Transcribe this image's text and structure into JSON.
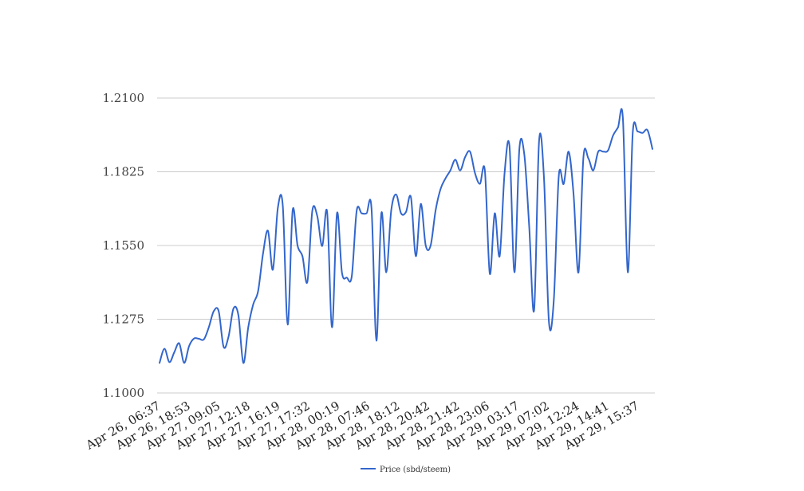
{
  "chart_data": {
    "type": "line",
    "title": "",
    "xlabel": "",
    "ylabel": "",
    "ylim": [
      1.1,
      1.21
    ],
    "y_ticks": [
      "1.1000",
      "1.1275",
      "1.1550",
      "1.1825",
      "1.2100"
    ],
    "x_tick_labels": [
      "Apr 26, 06:37",
      "Apr 26, 18:53",
      "Apr 27, 09:05",
      "Apr 27, 12:18",
      "Apr 27, 16:19",
      "Apr 27, 17:32",
      "Apr 28, 00:19",
      "Apr 28, 07:46",
      "Apr 28, 18:12",
      "Apr 28, 20:42",
      "Apr 28, 21:42",
      "Apr 28, 23:06",
      "Apr 29, 03:17",
      "Apr 29, 07:02",
      "Apr 29, 12:24",
      "Apr 29, 14:41",
      "Apr 29, 15:37"
    ],
    "grid": true,
    "legend_position": "bottom",
    "series": [
      {
        "name": "Price (sbd/steem)",
        "color": "#3366cc",
        "values": [
          1.1112,
          1.1165,
          1.1115,
          1.1152,
          1.1185,
          1.1112,
          1.1175,
          1.1203,
          1.1202,
          1.12,
          1.1245,
          1.1305,
          1.1305,
          1.1172,
          1.121,
          1.1315,
          1.129,
          1.1112,
          1.1245,
          1.133,
          1.138,
          1.152,
          1.1605,
          1.146,
          1.169,
          1.17,
          1.1255,
          1.168,
          1.155,
          1.151,
          1.1415,
          1.168,
          1.166,
          1.1548,
          1.1675,
          1.1245,
          1.167,
          1.145,
          1.143,
          1.1435,
          1.168,
          1.167,
          1.167,
          1.169,
          1.1195,
          1.167,
          1.145,
          1.168,
          1.174,
          1.167,
          1.1675,
          1.173,
          1.151,
          1.1705,
          1.155,
          1.155,
          1.168,
          1.176,
          1.18,
          1.183,
          1.187,
          1.183,
          1.188,
          1.19,
          1.182,
          1.178,
          1.183,
          1.1445,
          1.167,
          1.151,
          1.182,
          1.192,
          1.145,
          1.191,
          1.189,
          1.162,
          1.131,
          1.194,
          1.18,
          1.1265,
          1.135,
          1.181,
          1.178,
          1.19,
          1.174,
          1.145,
          1.188,
          1.1875,
          1.183,
          1.19,
          1.19,
          1.1905,
          1.196,
          1.199,
          1.2025,
          1.145,
          1.197,
          1.1975,
          1.197,
          1.198,
          1.191
        ]
      }
    ]
  }
}
